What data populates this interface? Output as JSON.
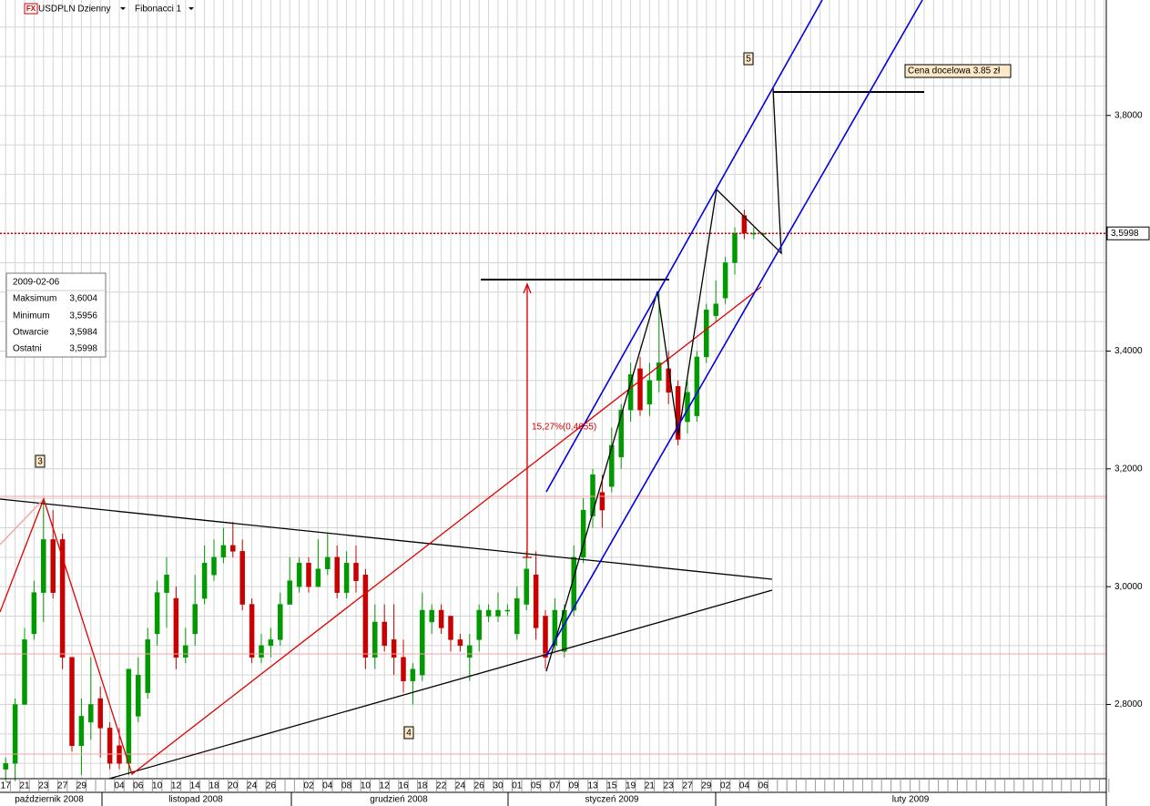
{
  "toolbar": {
    "icon": "FX",
    "symbol": "USDPLN Dzienny",
    "study": "Fibonacci 1"
  },
  "info": {
    "date": "2009-02-06",
    "rows": [
      [
        "Maksimum",
        "3,6004"
      ],
      [
        "Minimum",
        "3,5956"
      ],
      [
        "Otwarcie",
        "3,5984"
      ],
      [
        "Ostatni",
        "3,5998"
      ]
    ]
  },
  "annotations": {
    "wave_3": "3",
    "wave_4": "4",
    "wave_5": "5",
    "move": "15,27%(0,4655)",
    "target": "Cena docelowa 3.85 zł"
  },
  "months": [
    "październik 2008",
    "listopad 2008",
    "grudzień 2008",
    "styczeń 2009",
    "luty 2009"
  ],
  "chart_data": {
    "type": "candlestick",
    "categories": [
      "17",
      null,
      "21",
      null,
      "23",
      null,
      "27",
      null,
      "29",
      null,
      null,
      null,
      "04",
      null,
      "06",
      null,
      "10",
      null,
      "12",
      null,
      "14",
      null,
      "18",
      null,
      "20",
      null,
      "24",
      null,
      "26",
      null,
      null,
      null,
      "02",
      null,
      "04",
      null,
      "08",
      null,
      "10",
      null,
      "12",
      null,
      "16",
      null,
      "18",
      null,
      "22",
      null,
      "24",
      null,
      "26",
      null,
      "30",
      null,
      "01",
      null,
      "05",
      null,
      "07",
      null,
      "09",
      null,
      "13",
      null,
      "15",
      null,
      "19",
      null,
      "21",
      null,
      "23",
      null,
      "27",
      null,
      "29",
      null,
      "02",
      null,
      "04",
      null,
      "06"
    ],
    "open": [
      2.69,
      2.7,
      2.8,
      2.92,
      2.99,
      3.08,
      3.08,
      2.88,
      2.73,
      2.77,
      2.81,
      2.76,
      2.73,
      2.7,
      2.78,
      2.82,
      2.92,
      2.99,
      2.98,
      2.88,
      2.92,
      2.98,
      3.02,
      3.05,
      3.07,
      3.06,
      2.97,
      2.88,
      2.9,
      2.91,
      2.97,
      3.0,
      3.04,
      3.0,
      3.03,
      3.05,
      2.99,
      3.04,
      3.02,
      2.88,
      2.94,
      2.91,
      2.88,
      2.84,
      2.85,
      2.94,
      2.96,
      2.95,
      2.91,
      2.88,
      2.91,
      2.95,
      2.95,
      2.96,
      2.92,
      2.97,
      3.02,
      2.95,
      2.9,
      2.89,
      2.96,
      3.05,
      3.12,
      3.16,
      3.17,
      3.22,
      3.3,
      3.37,
      3.31,
      3.35,
      3.37,
      3.34,
      3.28,
      3.29,
      3.39,
      3.46,
      3.49,
      3.55,
      3.63,
      3.6,
      3.5984
    ],
    "high": [
      2.71,
      2.81,
      2.93,
      3.01,
      3.15,
      3.13,
      3.09,
      2.88,
      2.81,
      2.88,
      2.83,
      2.77,
      2.76,
      2.86,
      2.88,
      2.93,
      3.01,
      3.05,
      3.0,
      2.93,
      3.02,
      3.07,
      3.08,
      3.1,
      3.11,
      3.08,
      2.98,
      2.92,
      2.93,
      2.99,
      3.05,
      3.05,
      3.05,
      3.08,
      3.09,
      3.07,
      3.06,
      3.07,
      3.03,
      2.97,
      2.97,
      2.97,
      2.91,
      2.87,
      2.99,
      2.97,
      2.97,
      2.95,
      2.92,
      2.92,
      2.97,
      2.97,
      2.99,
      2.97,
      3.0,
      3.06,
      3.06,
      2.96,
      2.98,
      2.97,
      3.07,
      3.15,
      3.2,
      3.19,
      3.27,
      3.31,
      3.38,
      3.39,
      3.38,
      3.5,
      3.4,
      3.35,
      3.35,
      3.4,
      3.48,
      3.52,
      3.56,
      3.61,
      3.64,
      3.61,
      3.6004
    ],
    "low": [
      2.67,
      2.67,
      2.8,
      2.91,
      2.94,
      2.98,
      2.86,
      2.72,
      2.68,
      2.74,
      2.71,
      2.69,
      2.69,
      2.68,
      2.77,
      2.81,
      2.9,
      2.93,
      2.86,
      2.87,
      2.9,
      2.97,
      3.01,
      3.04,
      3.05,
      2.96,
      2.87,
      2.87,
      2.88,
      2.9,
      2.97,
      2.99,
      2.99,
      3.0,
      3.02,
      2.98,
      2.98,
      2.99,
      2.86,
      2.86,
      2.89,
      2.85,
      2.82,
      2.8,
      2.84,
      2.92,
      2.92,
      2.89,
      2.89,
      2.84,
      2.89,
      2.94,
      2.94,
      2.95,
      2.91,
      2.96,
      2.91,
      2.86,
      2.89,
      2.88,
      2.95,
      3.04,
      3.1,
      3.1,
      3.16,
      3.2,
      3.28,
      3.29,
      3.29,
      3.33,
      3.31,
      3.24,
      3.26,
      3.28,
      3.38,
      3.45,
      3.48,
      3.53,
      3.59,
      3.59,
      3.5956
    ],
    "close": [
      2.7,
      2.8,
      2.91,
      2.99,
      3.08,
      2.99,
      2.88,
      2.73,
      2.78,
      2.8,
      2.76,
      2.7,
      2.7,
      2.86,
      2.85,
      2.91,
      2.99,
      3.02,
      2.88,
      2.9,
      2.97,
      3.04,
      3.05,
      3.07,
      3.06,
      2.97,
      2.88,
      2.9,
      2.91,
      2.97,
      3.01,
      3.04,
      3.0,
      3.03,
      3.05,
      2.99,
      3.04,
      3.01,
      2.88,
      2.94,
      2.9,
      2.88,
      2.84,
      2.86,
      2.96,
      2.96,
      2.93,
      2.91,
      2.9,
      2.9,
      2.96,
      2.96,
      2.96,
      2.96,
      2.98,
      3.03,
      2.93,
      2.88,
      2.96,
      2.96,
      3.05,
      3.13,
      3.19,
      3.13,
      3.24,
      3.3,
      3.36,
      3.3,
      3.35,
      3.38,
      3.33,
      3.25,
      3.33,
      3.39,
      3.47,
      3.48,
      3.55,
      3.6,
      3.6,
      3.6,
      3.5998
    ],
    "up_color": "#009a00",
    "down_color": "#c80000",
    "ylim": [
      2.674,
      3.996
    ],
    "yticks": [
      {
        "value": 2.8,
        "label": "2,8000"
      },
      {
        "value": 3.0,
        "label": "3,0000"
      },
      {
        "value": 3.2,
        "label": "3,2000"
      },
      {
        "value": 3.4,
        "label": "3,4000"
      },
      {
        "value": 3.6,
        "label": "3,6000"
      },
      {
        "value": 3.8,
        "label": "3,8000"
      }
    ],
    "minor_yticks": [
      2.7,
      2.75,
      2.85,
      2.9,
      2.95,
      3.05,
      3.1,
      3.15,
      3.25,
      3.3,
      3.35,
      3.45,
      3.5,
      3.55,
      3.65,
      3.7,
      3.75,
      3.85,
      3.9,
      3.95
    ],
    "price_line": {
      "value": 3.5998,
      "label": "3,5998",
      "color": "#cc0000"
    },
    "grid": true
  }
}
